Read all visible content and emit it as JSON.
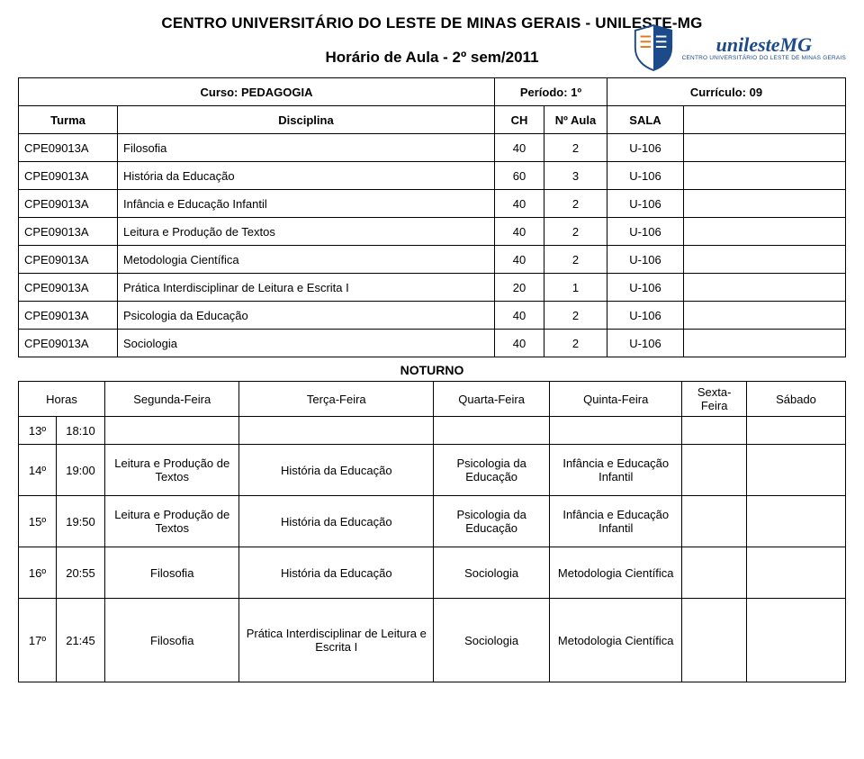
{
  "header": {
    "institution": "CENTRO UNIVERSITÁRIO DO LESTE DE MINAS GERAIS - UNILESTE-MG",
    "title": "Horário de Aula - 2º sem/2011",
    "logo": {
      "name": "unilesteMG",
      "sub": "Centro Universitário do Leste de Minas Gerais",
      "blue": "#1c4a8a",
      "orange": "#e37619"
    }
  },
  "meta": {
    "curso_label": "Curso:",
    "curso": "PEDAGOGIA",
    "periodo_label": "Período:",
    "periodo": "1º",
    "curriculo_label": "Currículo:",
    "curriculo": "09",
    "turma_label": "Turma",
    "disciplina_label": "Disciplina",
    "ch_label": "CH",
    "naula_label": "Nº Aula",
    "sala_label": "SALA"
  },
  "subjects": [
    {
      "turma": "CPE09013A",
      "disc": "Filosofia",
      "ch": "40",
      "na": "2",
      "sala": "U-106"
    },
    {
      "turma": "CPE09013A",
      "disc": "História da Educação",
      "ch": "60",
      "na": "3",
      "sala": "U-106"
    },
    {
      "turma": "CPE09013A",
      "disc": "Infância e Educação Infantil",
      "ch": "40",
      "na": "2",
      "sala": "U-106"
    },
    {
      "turma": "CPE09013A",
      "disc": "Leitura e Produção de Textos",
      "ch": "40",
      "na": "2",
      "sala": "U-106"
    },
    {
      "turma": "CPE09013A",
      "disc": "Metodologia Científica",
      "ch": "40",
      "na": "2",
      "sala": "U-106"
    },
    {
      "turma": "CPE09013A",
      "disc": "Prática Interdisciplinar de Leitura e Escrita I",
      "ch": "20",
      "na": "1",
      "sala": "U-106"
    },
    {
      "turma": "CPE09013A",
      "disc": "Psicologia da Educação",
      "ch": "40",
      "na": "2",
      "sala": "U-106"
    },
    {
      "turma": "CPE09013A",
      "disc": "Sociologia",
      "ch": "40",
      "na": "2",
      "sala": "U-106"
    }
  ],
  "noturno": "NOTURNO",
  "schedule": {
    "cols": [
      "Horas",
      "Segunda-Feira",
      "Terça-Feira",
      "Quarta-Feira",
      "Quinta-Feira",
      "Sexta-Feira",
      "Sábado"
    ],
    "rows": [
      {
        "slot": "13º",
        "time": "18:10",
        "cells": [
          "",
          "",
          "",
          "",
          "",
          ""
        ]
      },
      {
        "slot": "14º",
        "time": "19:00",
        "cells": [
          "Leitura e Produção de Textos",
          "História da Educação",
          "Psicologia da Educação",
          "Infância e Educação Infantil",
          "",
          ""
        ]
      },
      {
        "slot": "15º",
        "time": "19:50",
        "cells": [
          "Leitura e Produção de Textos",
          "História da Educação",
          "Psicologia da Educação",
          "Infância e Educação Infantil",
          "",
          ""
        ]
      },
      {
        "slot": "16º",
        "time": "20:55",
        "cells": [
          "Filosofia",
          "História da Educação",
          "Sociologia",
          "Metodologia Científica",
          "",
          ""
        ]
      },
      {
        "slot": "17º",
        "time": "21:45",
        "cells": [
          "Filosofia",
          "Prática Interdisciplinar de Leitura e Escrita I",
          "Sociologia",
          "Metodologia Científica",
          "",
          ""
        ]
      }
    ]
  }
}
